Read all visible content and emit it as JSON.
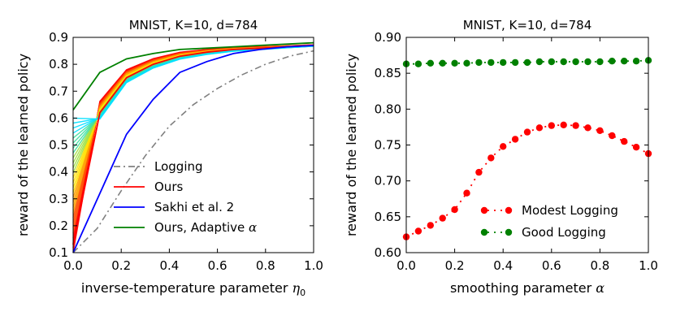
{
  "chart_data": [
    {
      "type": "line",
      "title": "MNIST, K=10, d=784",
      "xlabel": "inverse-temperature parameter",
      "xlabel_symbol": "η",
      "xlabel_subscript": "0",
      "ylabel": "reward of the learned policy",
      "xlim": [
        0.0,
        1.0
      ],
      "ylim": [
        0.1,
        0.9
      ],
      "xticks": [
        "0.0",
        "0.2",
        "0.4",
        "0.6",
        "0.8",
        "1.0"
      ],
      "yticks": [
        "0.1",
        "0.2",
        "0.3",
        "0.4",
        "0.5",
        "0.6",
        "0.7",
        "0.8",
        "0.9"
      ],
      "legend_position": "lower-right",
      "series": [
        {
          "name": "Logging",
          "color": "#808080",
          "style": "dashdot",
          "x": [
            0.0,
            0.1,
            0.2,
            0.3,
            0.4,
            0.5,
            0.6,
            0.7,
            0.8,
            0.9,
            1.0
          ],
          "values": [
            0.1,
            0.19,
            0.33,
            0.46,
            0.57,
            0.65,
            0.71,
            0.76,
            0.8,
            0.83,
            0.85
          ]
        },
        {
          "name": "Ours",
          "color": "#ff0000",
          "style": "solid",
          "x": [
            0.0,
            0.111,
            0.222,
            0.333,
            0.444,
            0.556,
            0.667,
            0.778,
            0.889,
            1.0
          ],
          "values": [
            0.13,
            0.62,
            0.75,
            0.8,
            0.83,
            0.845,
            0.855,
            0.86,
            0.865,
            0.87
          ]
        },
        {
          "name": "Sakhi et al. 2",
          "color": "#0000ff",
          "style": "solid",
          "x": [
            0.0,
            0.111,
            0.222,
            0.333,
            0.444,
            0.556,
            0.667,
            0.778,
            0.889,
            1.0
          ],
          "values": [
            0.1,
            0.32,
            0.54,
            0.67,
            0.77,
            0.81,
            0.84,
            0.855,
            0.865,
            0.87
          ]
        },
        {
          "name": "Ours, Adaptive",
          "name_symbol": "α",
          "color": "#008000",
          "style": "solid",
          "x": [
            0.0,
            0.111,
            0.222,
            0.333,
            0.444,
            0.556,
            0.667,
            0.778,
            0.889,
            1.0
          ],
          "values": [
            0.63,
            0.77,
            0.82,
            0.84,
            0.855,
            0.86,
            0.865,
            0.87,
            0.875,
            0.88
          ]
        }
      ],
      "band": {
        "description": "family of curves coloured red to cyan, one per smoothing value",
        "colors": [
          "#ff0000",
          "#ff5000",
          "#ffa000",
          "#ffe000",
          "#a0e040",
          "#40e0a0",
          "#00e0ff"
        ],
        "start_values": [
          0.1,
          0.2,
          0.28,
          0.36,
          0.44,
          0.52,
          0.6
        ],
        "x": [
          0.0,
          0.111,
          0.222,
          0.333,
          0.444,
          0.556,
          0.667,
          0.778,
          0.889,
          1.0
        ]
      }
    },
    {
      "type": "line",
      "title": "MNIST, K=10, d=784",
      "xlabel": "smoothing parameter",
      "xlabel_symbol": "α",
      "ylabel": "reward of the learned policy",
      "xlim": [
        0.0,
        1.0
      ],
      "ylim": [
        0.6,
        0.9
      ],
      "xticks": [
        "0.0",
        "0.2",
        "0.4",
        "0.6",
        "0.8",
        "1.0"
      ],
      "yticks": [
        "0.60",
        "0.65",
        "0.70",
        "0.75",
        "0.80",
        "0.85",
        "0.90"
      ],
      "legend_position": "lower-right",
      "series": [
        {
          "name": "Modest Logging",
          "color": "#ff0000",
          "style": "dotted-markers",
          "x": [
            0.0,
            0.05,
            0.1,
            0.15,
            0.2,
            0.25,
            0.3,
            0.35,
            0.4,
            0.45,
            0.5,
            0.55,
            0.6,
            0.65,
            0.7,
            0.75,
            0.8,
            0.85,
            0.9,
            0.95,
            1.0
          ],
          "values": [
            0.622,
            0.63,
            0.638,
            0.648,
            0.66,
            0.683,
            0.712,
            0.732,
            0.748,
            0.758,
            0.768,
            0.774,
            0.777,
            0.778,
            0.777,
            0.774,
            0.77,
            0.763,
            0.755,
            0.747,
            0.738
          ]
        },
        {
          "name": "Good Logging",
          "color": "#008000",
          "style": "dotted-markers",
          "x": [
            0.0,
            0.05,
            0.1,
            0.15,
            0.2,
            0.25,
            0.3,
            0.35,
            0.4,
            0.45,
            0.5,
            0.55,
            0.6,
            0.65,
            0.7,
            0.75,
            0.8,
            0.85,
            0.9,
            0.95,
            1.0
          ],
          "values": [
            0.863,
            0.863,
            0.864,
            0.864,
            0.864,
            0.864,
            0.865,
            0.865,
            0.865,
            0.865,
            0.865,
            0.866,
            0.866,
            0.866,
            0.866,
            0.866,
            0.866,
            0.867,
            0.867,
            0.867,
            0.868
          ]
        }
      ]
    }
  ]
}
